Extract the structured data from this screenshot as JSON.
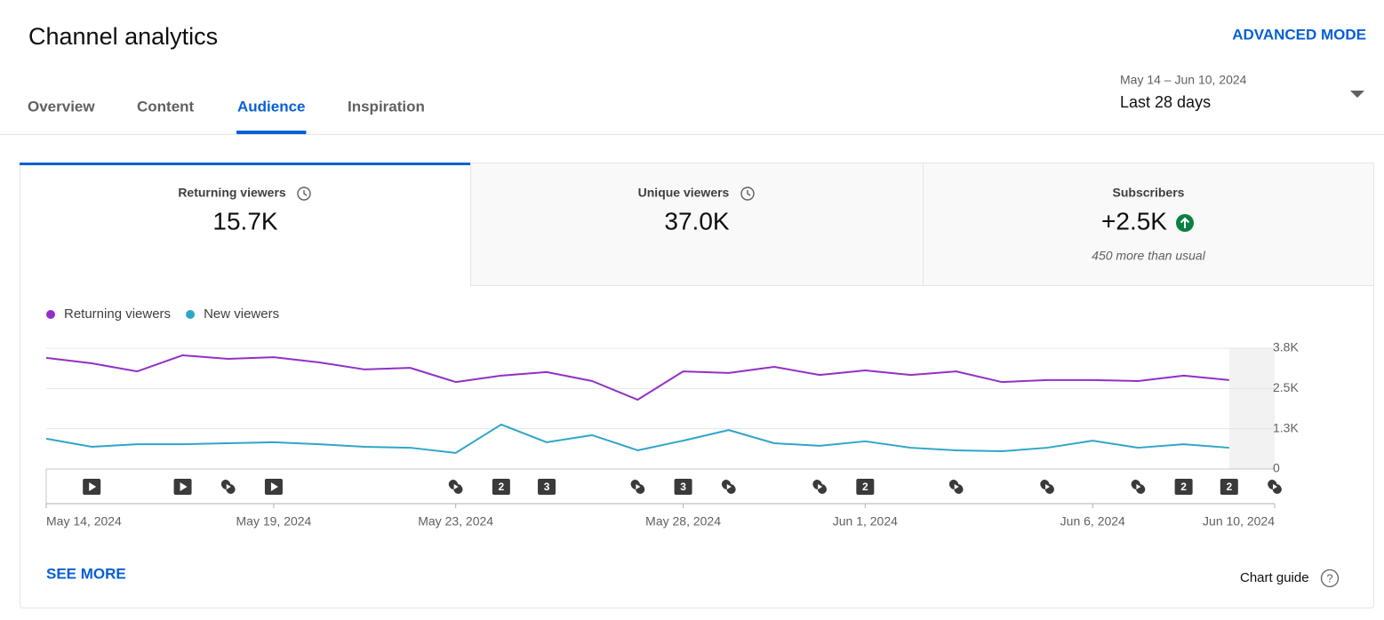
{
  "header": {
    "title": "Channel analytics",
    "advanced_mode": "ADVANCED MODE"
  },
  "tabs": [
    "Overview",
    "Content",
    "Audience",
    "Inspiration"
  ],
  "active_tab": 2,
  "date_range": {
    "dates": "May 14 – Jun 10, 2024",
    "label": "Last 28 days"
  },
  "cards": [
    {
      "title": "Returning viewers",
      "value": "15.7K"
    },
    {
      "title": "Unique viewers",
      "value": "37.0K"
    },
    {
      "title": "Subscribers",
      "value": "+2.5K",
      "note": "450 more than usual"
    }
  ],
  "chart_data": {
    "type": "line",
    "x": [
      "2024-05-14",
      "2024-05-15",
      "2024-05-16",
      "2024-05-17",
      "2024-05-18",
      "2024-05-19",
      "2024-05-20",
      "2024-05-21",
      "2024-05-22",
      "2024-05-23",
      "2024-05-24",
      "2024-05-25",
      "2024-05-26",
      "2024-05-27",
      "2024-05-28",
      "2024-05-29",
      "2024-05-30",
      "2024-05-31",
      "2024-06-01",
      "2024-06-02",
      "2024-06-03",
      "2024-06-04",
      "2024-06-05",
      "2024-06-06",
      "2024-06-07",
      "2024-06-08",
      "2024-06-09"
    ],
    "series": [
      {
        "name": "Returning viewers",
        "color": "#9230c4",
        "values": [
          3450,
          3280,
          3030,
          3530,
          3420,
          3470,
          3310,
          3090,
          3140,
          2700,
          2900,
          3010,
          2730,
          2150,
          3030,
          2980,
          3170,
          2920,
          3060,
          2920,
          3030,
          2700,
          2760,
          2760,
          2730,
          2900,
          2760
        ]
      },
      {
        "name": "New viewers",
        "color": "#30a5c9",
        "values": [
          940,
          690,
          770,
          770,
          800,
          830,
          770,
          690,
          660,
          500,
          1380,
          830,
          1050,
          580,
          880,
          1210,
          800,
          720,
          860,
          660,
          580,
          550,
          660,
          880,
          660,
          770,
          660
        ]
      }
    ],
    "xlim": [
      "2024-05-14",
      "2024-06-10"
    ],
    "xticks": [
      {
        "value": "2024-05-14",
        "label": "May 14, 2024"
      },
      {
        "value": "2024-05-19",
        "label": "May 19, 2024"
      },
      {
        "value": "2024-05-23",
        "label": "May 23, 2024"
      },
      {
        "value": "2024-05-28",
        "label": "May 28, 2024"
      },
      {
        "value": "2024-06-01",
        "label": "Jun 1, 2024"
      },
      {
        "value": "2024-06-06",
        "label": "Jun 6, 2024"
      },
      {
        "value": "2024-06-10",
        "label": "Jun 10, 2024"
      }
    ],
    "ylim": [
      0,
      3750
    ],
    "yticks": [
      0,
      {
        "value": 1250,
        "label": "1.3K"
      },
      {
        "value": 2500,
        "label": "2.5K"
      },
      {
        "value": 3750,
        "label": "3.8K"
      }
    ],
    "grid": true,
    "legend": "top-left",
    "markers": [
      {
        "date": "2024-05-15",
        "kind": "video"
      },
      {
        "date": "2024-05-17",
        "kind": "video"
      },
      {
        "date": "2024-05-18",
        "kind": "short"
      },
      {
        "date": "2024-05-19",
        "kind": "video"
      },
      {
        "date": "2024-05-23",
        "kind": "short"
      },
      {
        "date": "2024-05-24",
        "kind": "group",
        "count": 2
      },
      {
        "date": "2024-05-25",
        "kind": "group",
        "count": 3
      },
      {
        "date": "2024-05-27",
        "kind": "short"
      },
      {
        "date": "2024-05-28",
        "kind": "group",
        "count": 3
      },
      {
        "date": "2024-05-29",
        "kind": "short"
      },
      {
        "date": "2024-05-31",
        "kind": "short"
      },
      {
        "date": "2024-06-01",
        "kind": "group",
        "count": 2
      },
      {
        "date": "2024-06-03",
        "kind": "short"
      },
      {
        "date": "2024-06-05",
        "kind": "short"
      },
      {
        "date": "2024-06-07",
        "kind": "short"
      },
      {
        "date": "2024-06-08",
        "kind": "group",
        "count": 2
      },
      {
        "date": "2024-06-09",
        "kind": "group",
        "count": 2
      },
      {
        "date": "2024-06-10",
        "kind": "short"
      }
    ]
  },
  "footer": {
    "see_more": "SEE MORE",
    "chart_guide": "Chart guide"
  }
}
